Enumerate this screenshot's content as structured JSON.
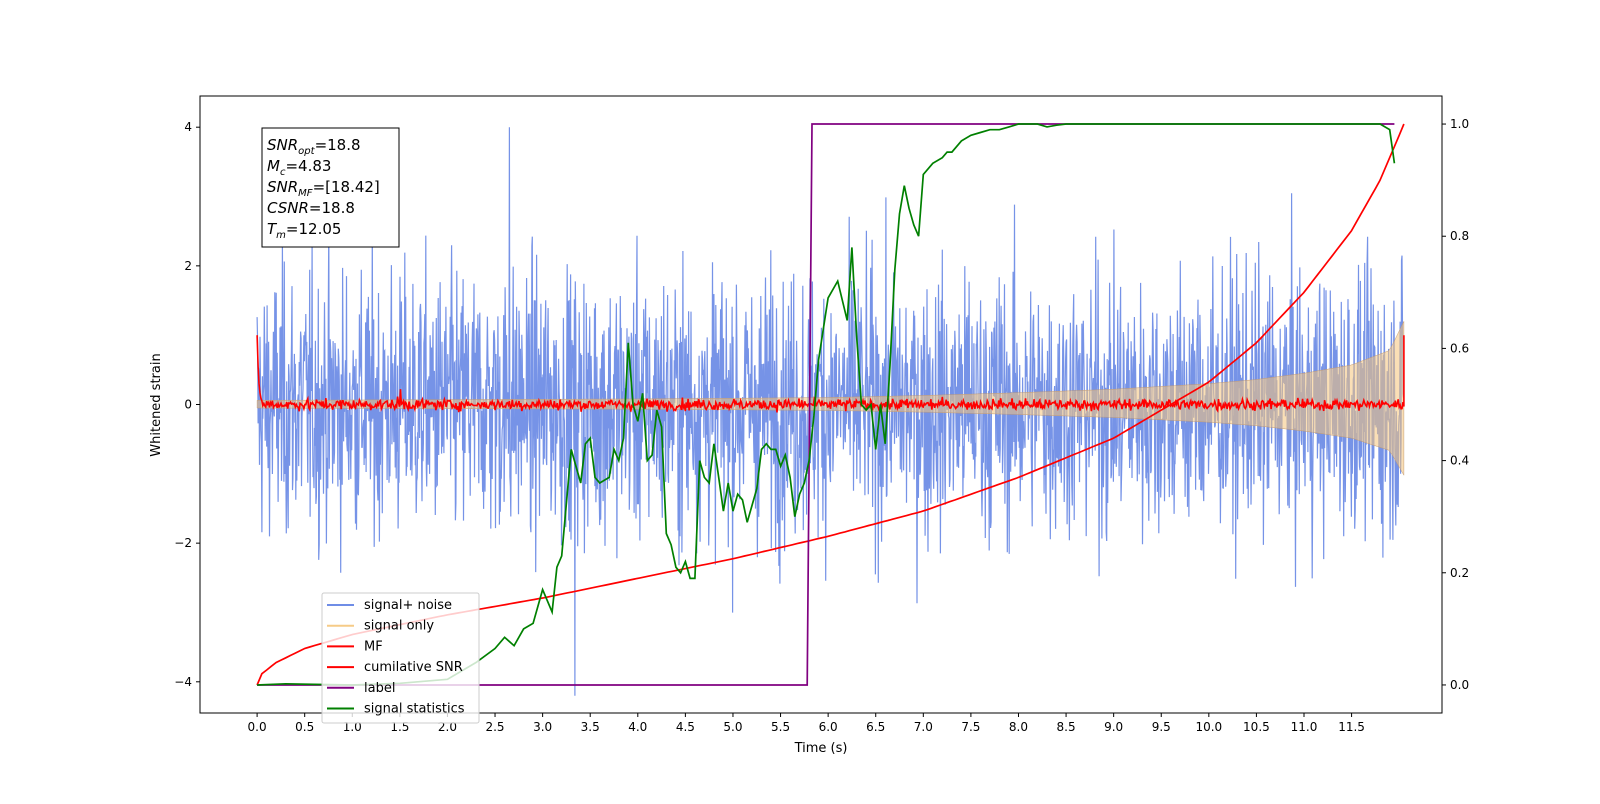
{
  "chart_data": {
    "type": "line",
    "xlabel": "Time (s)",
    "ylabel": "Whitened strain",
    "xlim": [
      -0.6,
      12.45
    ],
    "ylim": [
      -4.45,
      4.45
    ],
    "y2lim": [
      -0.05,
      1.05
    ],
    "xticks": [
      0.0,
      0.5,
      1.0,
      1.5,
      2.0,
      2.5,
      3.0,
      3.5,
      4.0,
      4.5,
      5.0,
      5.5,
      6.0,
      6.5,
      7.0,
      7.5,
      8.0,
      8.5,
      9.0,
      9.5,
      10.0,
      10.5,
      11.0,
      11.5
    ],
    "xtick_labels": [
      "0.0",
      "0.5",
      "1.0",
      "1.5",
      "2.0",
      "2.5",
      "3.0",
      "3.5",
      "4.0",
      "4.5",
      "5.0",
      "5.5",
      "6.0",
      "6.5",
      "7.0",
      "7.5",
      "8.0",
      "8.5",
      "9.0",
      "9.5",
      "10.0",
      "10.5",
      "11.0",
      "11.5"
    ],
    "yticks": [
      -4,
      -2,
      0,
      2,
      4
    ],
    "ytick_labels": [
      "−4",
      "−2",
      "0",
      "2",
      "4"
    ],
    "y2ticks": [
      0.0,
      0.2,
      0.4,
      0.6,
      0.8,
      1.0
    ],
    "y2tick_labels": [
      "0.0",
      "0.2",
      "0.4",
      "0.6",
      "0.8",
      "1.0"
    ],
    "legend_position": "lower-left",
    "annotation": [
      {
        "sym": "SNR",
        "sub": "opt",
        "val": "=18.8"
      },
      {
        "sym": "M",
        "sub": "c",
        "val": "=4.83"
      },
      {
        "sym": "SNR",
        "sub": "MF",
        "val": "=[18.42]"
      },
      {
        "sym": "CSNR",
        "sub": "",
        "val": "=18.8"
      },
      {
        "sym": "T",
        "sub": "m",
        "val": "=12.05"
      }
    ],
    "series": [
      {
        "name": "signal+ noise",
        "color": "#6f8de6",
        "axis": "left",
        "kind": "noise",
        "t_range": [
          0.0,
          12.05
        ],
        "std": 1.0,
        "peak_max": 4.0,
        "peak_min": -4.2
      },
      {
        "name": "signal only",
        "color": "#f5c57a",
        "axis": "left",
        "kind": "envelope",
        "t_range": [
          0.0,
          12.05
        ],
        "x": [
          0.0,
          2.0,
          4.0,
          6.0,
          7.0,
          8.0,
          9.0,
          10.0,
          10.5,
          11.0,
          11.5,
          11.9,
          12.05
        ],
        "amplitude": [
          0.06,
          0.07,
          0.08,
          0.1,
          0.13,
          0.17,
          0.22,
          0.3,
          0.36,
          0.45,
          0.57,
          0.78,
          1.2
        ]
      },
      {
        "name": "MF",
        "color": "#ff0000",
        "axis": "left",
        "kind": "noise-small",
        "t_range": [
          0.0,
          12.05
        ],
        "std": 0.04,
        "start_value": 1.0,
        "end_value": 1.0
      },
      {
        "name": "cumilative SNR",
        "color": "#ff0000",
        "axis": "right",
        "x": [
          0.0,
          0.05,
          0.2,
          0.5,
          1.0,
          2.0,
          3.0,
          4.0,
          5.0,
          6.0,
          7.0,
          8.0,
          9.0,
          9.5,
          10.0,
          10.5,
          11.0,
          11.5,
          11.8,
          12.05
        ],
        "y": [
          0.0,
          0.02,
          0.04,
          0.065,
          0.09,
          0.125,
          0.155,
          0.19,
          0.225,
          0.265,
          0.31,
          0.37,
          0.44,
          0.49,
          0.54,
          0.61,
          0.7,
          0.81,
          0.9,
          1.0
        ]
      },
      {
        "name": "label",
        "color": "#800080",
        "axis": "right",
        "x": [
          0.0,
          5.78,
          5.83,
          11.95
        ],
        "y": [
          0.0,
          0.0,
          1.0,
          1.0
        ]
      },
      {
        "name": "signal statistics",
        "color": "#008000",
        "axis": "right",
        "x": [
          0.0,
          0.3,
          0.6,
          1.0,
          1.5,
          2.0,
          2.3,
          2.5,
          2.6,
          2.7,
          2.8,
          2.9,
          3.0,
          3.1,
          3.15,
          3.2,
          3.3,
          3.4,
          3.45,
          3.5,
          3.55,
          3.6,
          3.7,
          3.75,
          3.8,
          3.85,
          3.9,
          3.95,
          4.0,
          4.05,
          4.1,
          4.15,
          4.2,
          4.25,
          4.3,
          4.35,
          4.4,
          4.45,
          4.5,
          4.55,
          4.6,
          4.65,
          4.7,
          4.75,
          4.8,
          4.85,
          4.9,
          4.95,
          5.0,
          5.05,
          5.1,
          5.15,
          5.2,
          5.25,
          5.3,
          5.35,
          5.4,
          5.45,
          5.5,
          5.55,
          5.6,
          5.65,
          5.7,
          5.75,
          5.8,
          5.85,
          5.9,
          6.0,
          6.1,
          6.2,
          6.25,
          6.3,
          6.35,
          6.4,
          6.45,
          6.5,
          6.55,
          6.6,
          6.65,
          6.7,
          6.75,
          6.8,
          6.85,
          6.9,
          6.95,
          7.0,
          7.1,
          7.2,
          7.25,
          7.3,
          7.4,
          7.5,
          7.6,
          7.7,
          7.8,
          7.9,
          8.0,
          8.1,
          8.2,
          8.3,
          8.4,
          8.5,
          9.0,
          10.0,
          11.0,
          11.5,
          11.8,
          11.9,
          11.95
        ],
        "y": [
          0.0,
          0.002,
          0.001,
          0.0,
          0.003,
          0.01,
          0.04,
          0.065,
          0.085,
          0.07,
          0.1,
          0.11,
          0.17,
          0.13,
          0.21,
          0.23,
          0.42,
          0.36,
          0.43,
          0.44,
          0.37,
          0.36,
          0.37,
          0.42,
          0.4,
          0.44,
          0.61,
          0.5,
          0.47,
          0.52,
          0.4,
          0.41,
          0.49,
          0.46,
          0.27,
          0.25,
          0.21,
          0.2,
          0.22,
          0.19,
          0.19,
          0.4,
          0.37,
          0.36,
          0.43,
          0.37,
          0.31,
          0.36,
          0.31,
          0.34,
          0.33,
          0.29,
          0.32,
          0.35,
          0.42,
          0.43,
          0.42,
          0.42,
          0.39,
          0.41,
          0.37,
          0.3,
          0.34,
          0.36,
          0.4,
          0.48,
          0.58,
          0.69,
          0.72,
          0.65,
          0.78,
          0.62,
          0.5,
          0.49,
          0.5,
          0.42,
          0.5,
          0.43,
          0.57,
          0.74,
          0.84,
          0.89,
          0.85,
          0.82,
          0.8,
          0.91,
          0.93,
          0.94,
          0.95,
          0.95,
          0.97,
          0.98,
          0.985,
          0.99,
          0.99,
          0.995,
          1.0,
          1.0,
          1.0,
          0.995,
          0.998,
          1.0,
          1.0,
          1.0,
          1.0,
          1.0,
          1.0,
          0.99,
          0.93
        ]
      }
    ]
  }
}
